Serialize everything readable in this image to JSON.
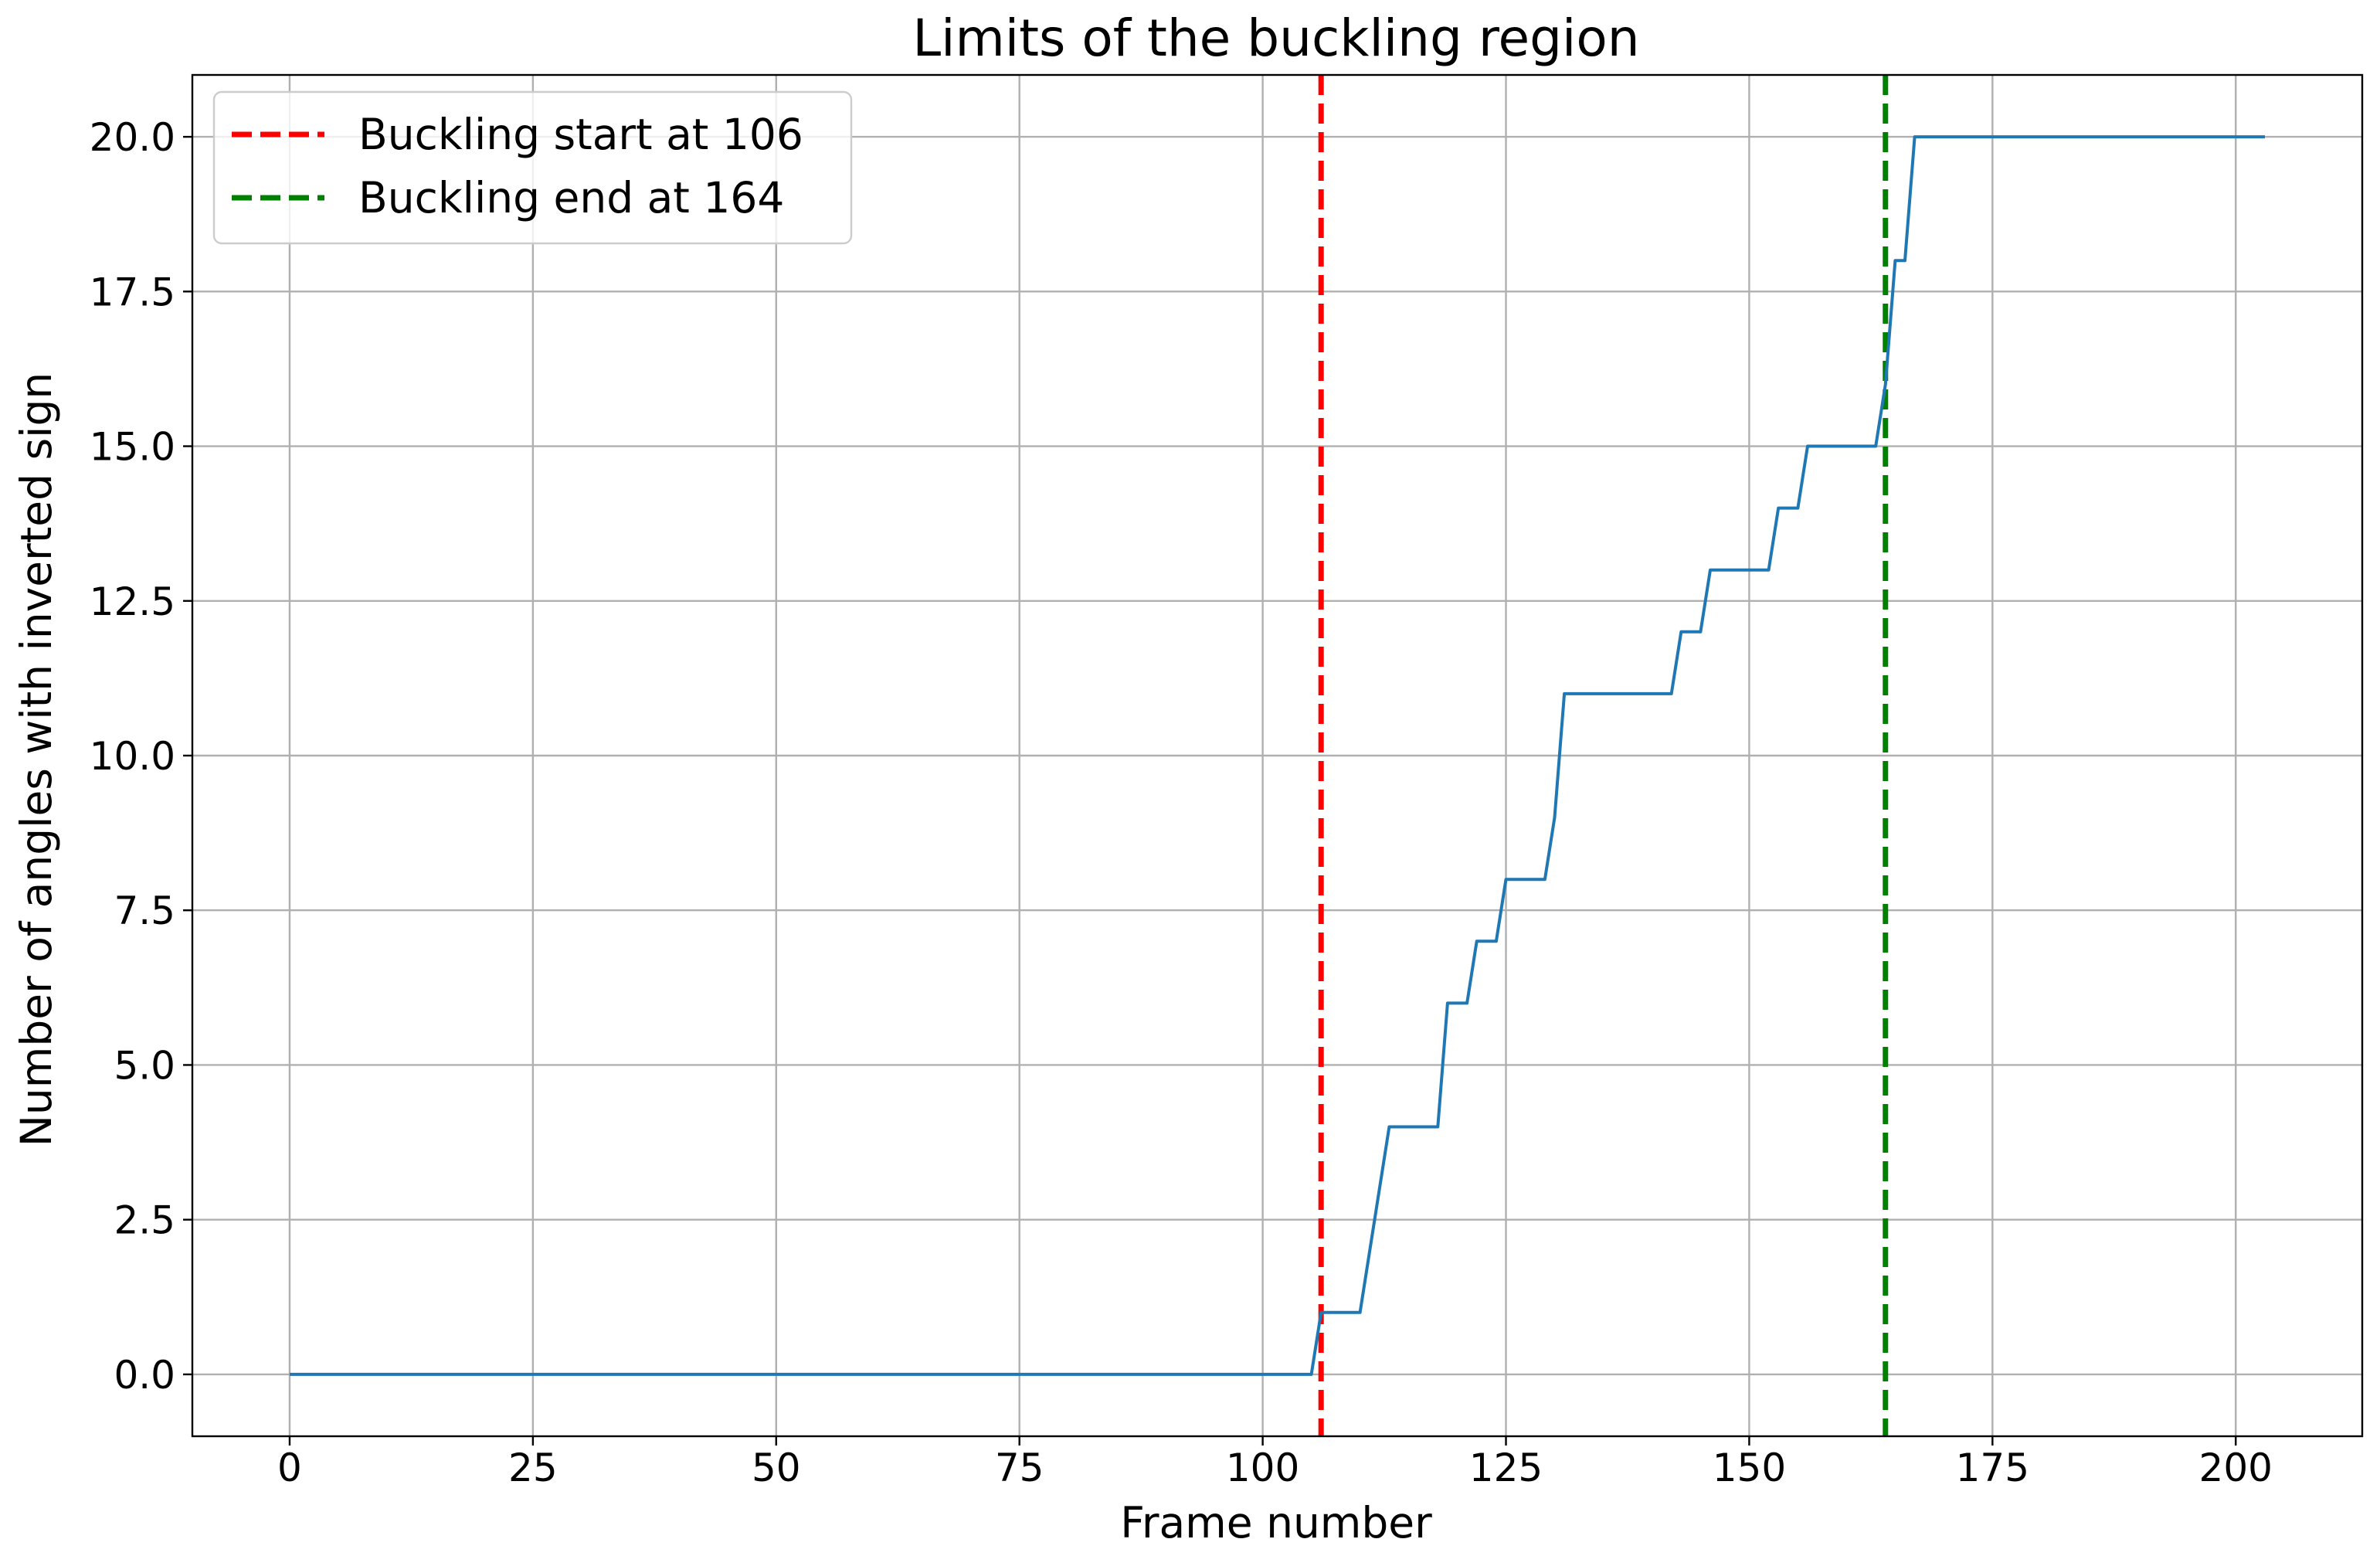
{
  "chart_data": {
    "type": "line",
    "title": "Limits of the buckling region",
    "xlabel": "Frame number",
    "ylabel": "Number of angles with inverted sign",
    "xlim": [
      -10,
      213
    ],
    "ylim": [
      -1,
      21
    ],
    "xticks": [
      0,
      25,
      50,
      75,
      100,
      125,
      150,
      175,
      200
    ],
    "xtick_labels": [
      "0",
      "25",
      "50",
      "75",
      "100",
      "125",
      "150",
      "175",
      "200"
    ],
    "yticks": [
      0,
      2.5,
      5,
      7.5,
      10,
      12.5,
      15,
      17.5,
      20
    ],
    "ytick_labels": [
      "0.0",
      "2.5",
      "5.0",
      "7.5",
      "10.0",
      "12.5",
      "15.0",
      "17.5",
      "20.0"
    ],
    "grid": true,
    "legend_position": "upper-left",
    "series": [
      {
        "color": "#1f77b4",
        "x": [
          0,
          105,
          106,
          107,
          108,
          109,
          110,
          111,
          112,
          113,
          114,
          115,
          116,
          117,
          118,
          119,
          120,
          121,
          122,
          123,
          124,
          125,
          126,
          127,
          128,
          129,
          130,
          131,
          132,
          133,
          134,
          135,
          136,
          137,
          138,
          139,
          140,
          141,
          142,
          143,
          144,
          145,
          146,
          147,
          148,
          149,
          150,
          151,
          152,
          153,
          154,
          155,
          156,
          157,
          158,
          159,
          160,
          161,
          162,
          163,
          164,
          165,
          166,
          167,
          203
        ],
        "y": [
          0,
          0,
          1,
          1,
          1,
          1,
          1,
          2,
          3,
          4,
          4,
          4,
          4,
          4,
          4,
          6,
          6,
          6,
          7,
          7,
          7,
          8,
          8,
          8,
          8,
          8,
          9,
          11,
          11,
          11,
          11,
          11,
          11,
          11,
          11,
          11,
          11,
          11,
          11,
          12,
          12,
          12,
          13,
          13,
          13,
          13,
          13,
          13,
          13,
          14,
          14,
          14,
          15,
          15,
          15,
          15,
          15,
          15,
          15,
          15,
          16,
          18,
          18,
          20,
          20
        ]
      }
    ],
    "vlines": [
      {
        "label": "Buckling start at 106",
        "x": 106,
        "color": "#ff0000",
        "style": "dashed"
      },
      {
        "label": "Buckling end at 164",
        "x": 164,
        "color": "#008000",
        "style": "dashed"
      }
    ]
  }
}
